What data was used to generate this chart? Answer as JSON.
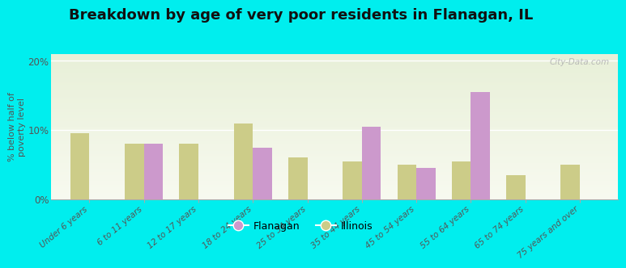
{
  "title": "Breakdown by age of very poor residents in Flanagan, IL",
  "ylabel": "% below half of\npoverty level",
  "categories": [
    "Under 6 years",
    "6 to 11 years",
    "12 to 17 years",
    "18 to 24 years",
    "25 to 34 years",
    "35 to 44 years",
    "45 to 54 years",
    "55 to 64 years",
    "65 to 74 years",
    "75 years and over"
  ],
  "flanagan_values": [
    0,
    8.0,
    0,
    7.5,
    0,
    10.5,
    4.5,
    15.5,
    0,
    0
  ],
  "illinois_values": [
    9.5,
    8.0,
    8.0,
    11.0,
    6.0,
    5.5,
    5.0,
    5.5,
    3.5,
    5.0
  ],
  "flanagan_color": "#cc99cc",
  "illinois_color": "#cccc88",
  "outer_background": "#00eeee",
  "ylim": [
    0,
    21
  ],
  "yticks": [
    0,
    10,
    20
  ],
  "ytick_labels": [
    "0%",
    "10%",
    "20%"
  ],
  "bar_width": 0.35,
  "title_fontsize": 13,
  "watermark": "City-Data.com",
  "legend_flanagan": "Flanagan",
  "legend_illinois": "Illinois",
  "plot_bg_top": "#e8f0d8",
  "plot_bg_bottom": "#d0e8c0"
}
